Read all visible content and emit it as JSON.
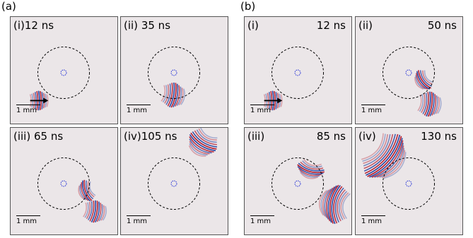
{
  "figure": {
    "groups": [
      {
        "label": "(a)",
        "panels": [
          {
            "tag": "(i)",
            "time": "12 ns",
            "scale": "1 mm",
            "wave": "a1"
          },
          {
            "tag": "(ii)",
            "time": "35 ns",
            "scale": "1 mm",
            "wave": "a2"
          },
          {
            "tag": "(iii)",
            "time": "65 ns",
            "scale": "1 mm",
            "wave": "a3"
          },
          {
            "tag": "(iv)",
            "time": "105 ns",
            "scale": "1 mm",
            "wave": "a4"
          }
        ]
      },
      {
        "label": "(b)",
        "panels": [
          {
            "tag": "(i)",
            "time": "12 ns",
            "scale": "1 mm",
            "wave": "b1"
          },
          {
            "tag": "(ii)",
            "time": "50 ns",
            "scale": "1 mm",
            "wave": "b2"
          },
          {
            "tag": "(iii)",
            "time": "85 ns",
            "scale": "1 mm",
            "wave": "b3"
          },
          {
            "tag": "(iv)",
            "time": "130 ns",
            "scale": "1 mm",
            "wave": "b4"
          }
        ]
      }
    ],
    "colors": {
      "background": "#ebe6e8",
      "wave_positive": "#b2182b",
      "wave_negative": "#2140a0",
      "ring": "#000000",
      "core": "#1e2bd6",
      "arrow": "#000000"
    }
  }
}
